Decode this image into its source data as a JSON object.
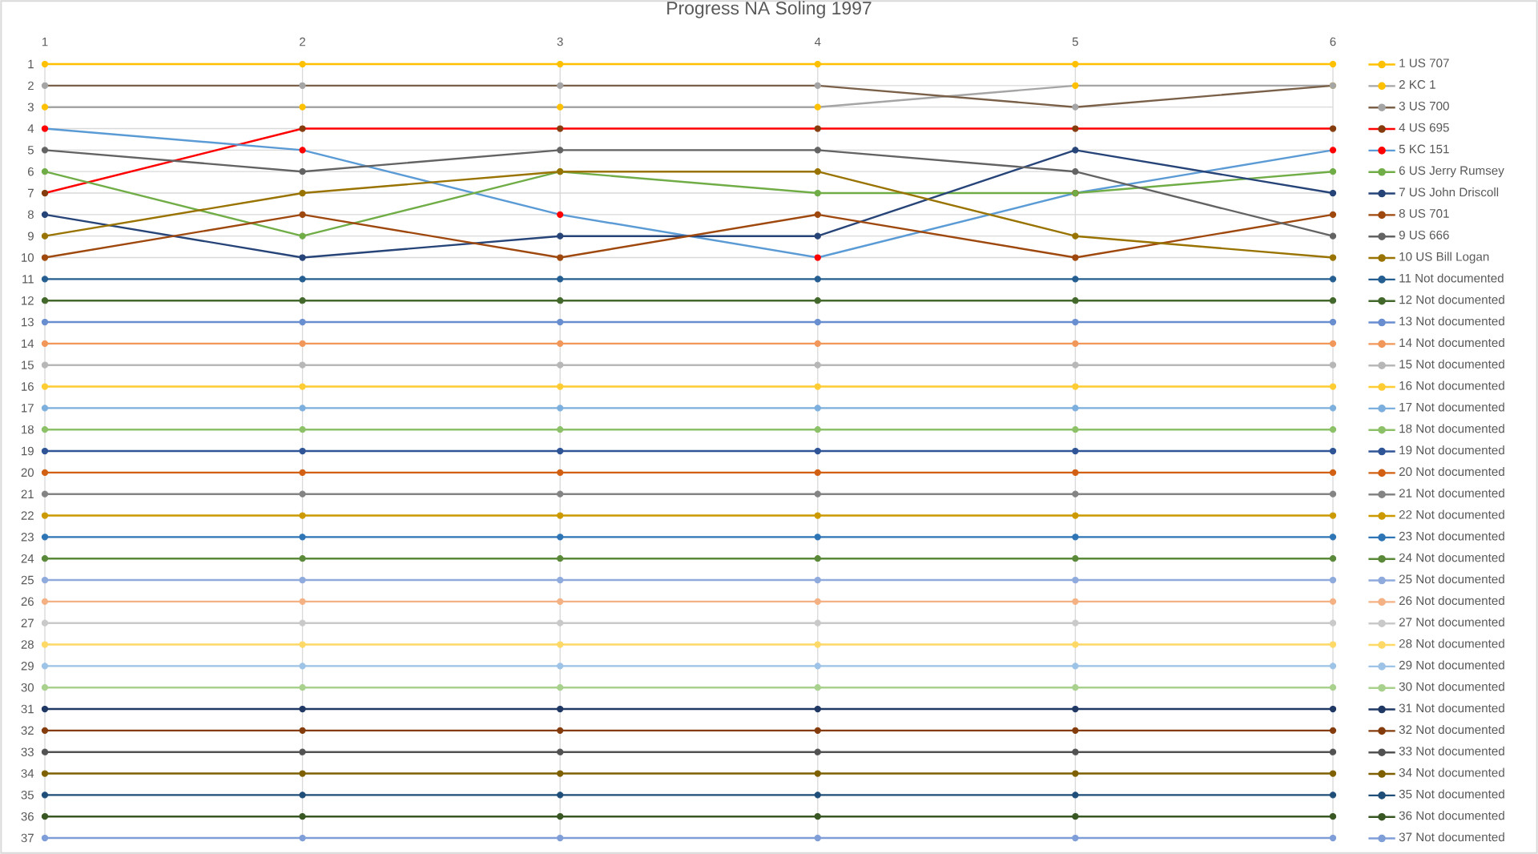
{
  "chart_data": {
    "type": "line",
    "title": "Progress NA Soling 1997",
    "x": [
      1,
      2,
      3,
      4,
      5,
      6
    ],
    "xlim": [
      1,
      6
    ],
    "xticks": [
      1,
      2,
      3,
      4,
      5,
      6
    ],
    "ylim": [
      37,
      1
    ],
    "yticks": [
      1,
      2,
      3,
      4,
      5,
      6,
      7,
      8,
      9,
      10,
      11,
      12,
      13,
      14,
      15,
      16,
      17,
      18,
      19,
      20,
      21,
      22,
      23,
      24,
      25,
      26,
      27,
      28,
      29,
      30,
      31,
      32,
      33,
      34,
      35,
      36,
      37
    ],
    "grid": true,
    "legend": "right",
    "marker": "circle",
    "series": [
      {
        "name": "1 US 707",
        "color": "#FFC000",
        "values": [
          1,
          1,
          1,
          1,
          1,
          1
        ]
      },
      {
        "name": "2 KC 1",
        "color": "#A5A5A5",
        "colors": [
          "#FFC000",
          "#FFC000",
          "#FFC000",
          "#FFC000",
          "#FFC000",
          "#FFC000"
        ],
        "values": [
          3,
          3,
          3,
          3,
          2,
          2
        ]
      },
      {
        "name": "3 US 700",
        "color": "#7A6048",
        "colors": [
          "#A5A5A5",
          "#A5A5A5",
          "#A5A5A5",
          "#A5A5A5",
          "#A5A5A5",
          "#A5A5A5"
        ],
        "values": [
          2,
          2,
          2,
          2,
          3,
          2
        ]
      },
      {
        "name": "4 US 695",
        "color": "#FF0000",
        "colors": [
          "#843C0C",
          "#843C0C",
          "#843C0C",
          "#843C0C",
          "#843C0C",
          "#843C0C"
        ],
        "values": [
          7,
          4,
          4,
          4,
          4,
          4
        ]
      },
      {
        "name": "5 KC 151",
        "color": "#5B9BD5",
        "colors": [
          "#FF0000",
          "#FF0000",
          "#FF0000",
          "#FF0000",
          "#FF0000",
          "#FF0000"
        ],
        "values": [
          4,
          5,
          8,
          10,
          7,
          5
        ]
      },
      {
        "name": "6 US Jerry Rumsey",
        "color": "#70AD47",
        "values": [
          6,
          9,
          6,
          7,
          7,
          6
        ]
      },
      {
        "name": "7 US John Driscoll",
        "color": "#264478",
        "values": [
          8,
          10,
          9,
          9,
          5,
          7
        ]
      },
      {
        "name": "8 US 701",
        "color": "#9E480E",
        "values": [
          10,
          8,
          10,
          8,
          10,
          8
        ]
      },
      {
        "name": "9 US 666",
        "color": "#636363",
        "values": [
          5,
          6,
          5,
          5,
          6,
          9
        ]
      },
      {
        "name": "10 US Bill Logan",
        "color": "#997300",
        "values": [
          9,
          7,
          6,
          6,
          9,
          10
        ]
      },
      {
        "name": "11 Not documented",
        "color": "#255E91",
        "values": [
          11,
          11,
          11,
          11,
          11,
          11
        ]
      },
      {
        "name": "12 Not documented",
        "color": "#43682B",
        "values": [
          12,
          12,
          12,
          12,
          12,
          12
        ]
      },
      {
        "name": "13 Not documented",
        "color": "#698ED0",
        "values": [
          13,
          13,
          13,
          13,
          13,
          13
        ]
      },
      {
        "name": "14 Not documented",
        "color": "#F1975A",
        "values": [
          14,
          14,
          14,
          14,
          14,
          14
        ]
      },
      {
        "name": "15 Not documented",
        "color": "#B7B7B7",
        "values": [
          15,
          15,
          15,
          15,
          15,
          15
        ]
      },
      {
        "name": "16 Not documented",
        "color": "#FFCD33",
        "values": [
          16,
          16,
          16,
          16,
          16,
          16
        ]
      },
      {
        "name": "17 Not documented",
        "color": "#7CAFDD",
        "values": [
          17,
          17,
          17,
          17,
          17,
          17
        ]
      },
      {
        "name": "18 Not documented",
        "color": "#8CC168",
        "values": [
          18,
          18,
          18,
          18,
          18,
          18
        ]
      },
      {
        "name": "19 Not documented",
        "color": "#2F5597",
        "values": [
          19,
          19,
          19,
          19,
          19,
          19
        ]
      },
      {
        "name": "20 Not documented",
        "color": "#D26012",
        "values": [
          20,
          20,
          20,
          20,
          20,
          20
        ]
      },
      {
        "name": "21 Not documented",
        "color": "#848484",
        "values": [
          21,
          21,
          21,
          21,
          21,
          21
        ]
      },
      {
        "name": "22 Not documented",
        "color": "#CC9A00",
        "values": [
          22,
          22,
          22,
          22,
          22,
          22
        ]
      },
      {
        "name": "23 Not documented",
        "color": "#2E75B6",
        "values": [
          23,
          23,
          23,
          23,
          23,
          23
        ]
      },
      {
        "name": "24 Not documented",
        "color": "#5A8A39",
        "values": [
          24,
          24,
          24,
          24,
          24,
          24
        ]
      },
      {
        "name": "25 Not documented",
        "color": "#8FAADC",
        "values": [
          25,
          25,
          25,
          25,
          25,
          25
        ]
      },
      {
        "name": "26 Not documented",
        "color": "#F4B183",
        "values": [
          26,
          26,
          26,
          26,
          26,
          26
        ]
      },
      {
        "name": "27 Not documented",
        "color": "#C9C9C9",
        "values": [
          27,
          27,
          27,
          27,
          27,
          27
        ]
      },
      {
        "name": "28 Not documented",
        "color": "#FFD966",
        "values": [
          28,
          28,
          28,
          28,
          28,
          28
        ]
      },
      {
        "name": "29 Not documented",
        "color": "#9DC3E6",
        "values": [
          29,
          29,
          29,
          29,
          29,
          29
        ]
      },
      {
        "name": "30 Not documented",
        "color": "#A9D18E",
        "values": [
          30,
          30,
          30,
          30,
          30,
          30
        ]
      },
      {
        "name": "31 Not documented",
        "color": "#203864",
        "values": [
          31,
          31,
          31,
          31,
          31,
          31
        ]
      },
      {
        "name": "32 Not documented",
        "color": "#843C0C",
        "values": [
          32,
          32,
          32,
          32,
          32,
          32
        ]
      },
      {
        "name": "33 Not documented",
        "color": "#525252",
        "values": [
          33,
          33,
          33,
          33,
          33,
          33
        ]
      },
      {
        "name": "34 Not documented",
        "color": "#7F6000",
        "values": [
          34,
          34,
          34,
          34,
          34,
          34
        ]
      },
      {
        "name": "35 Not documented",
        "color": "#1F4E79",
        "values": [
          35,
          35,
          35,
          35,
          35,
          35
        ]
      },
      {
        "name": "36 Not documented",
        "color": "#385723",
        "values": [
          36,
          36,
          36,
          36,
          36,
          36
        ]
      },
      {
        "name": "37 Not documented",
        "color": "#7F9ED8",
        "values": [
          37,
          37,
          37,
          37,
          37,
          37
        ]
      }
    ]
  }
}
